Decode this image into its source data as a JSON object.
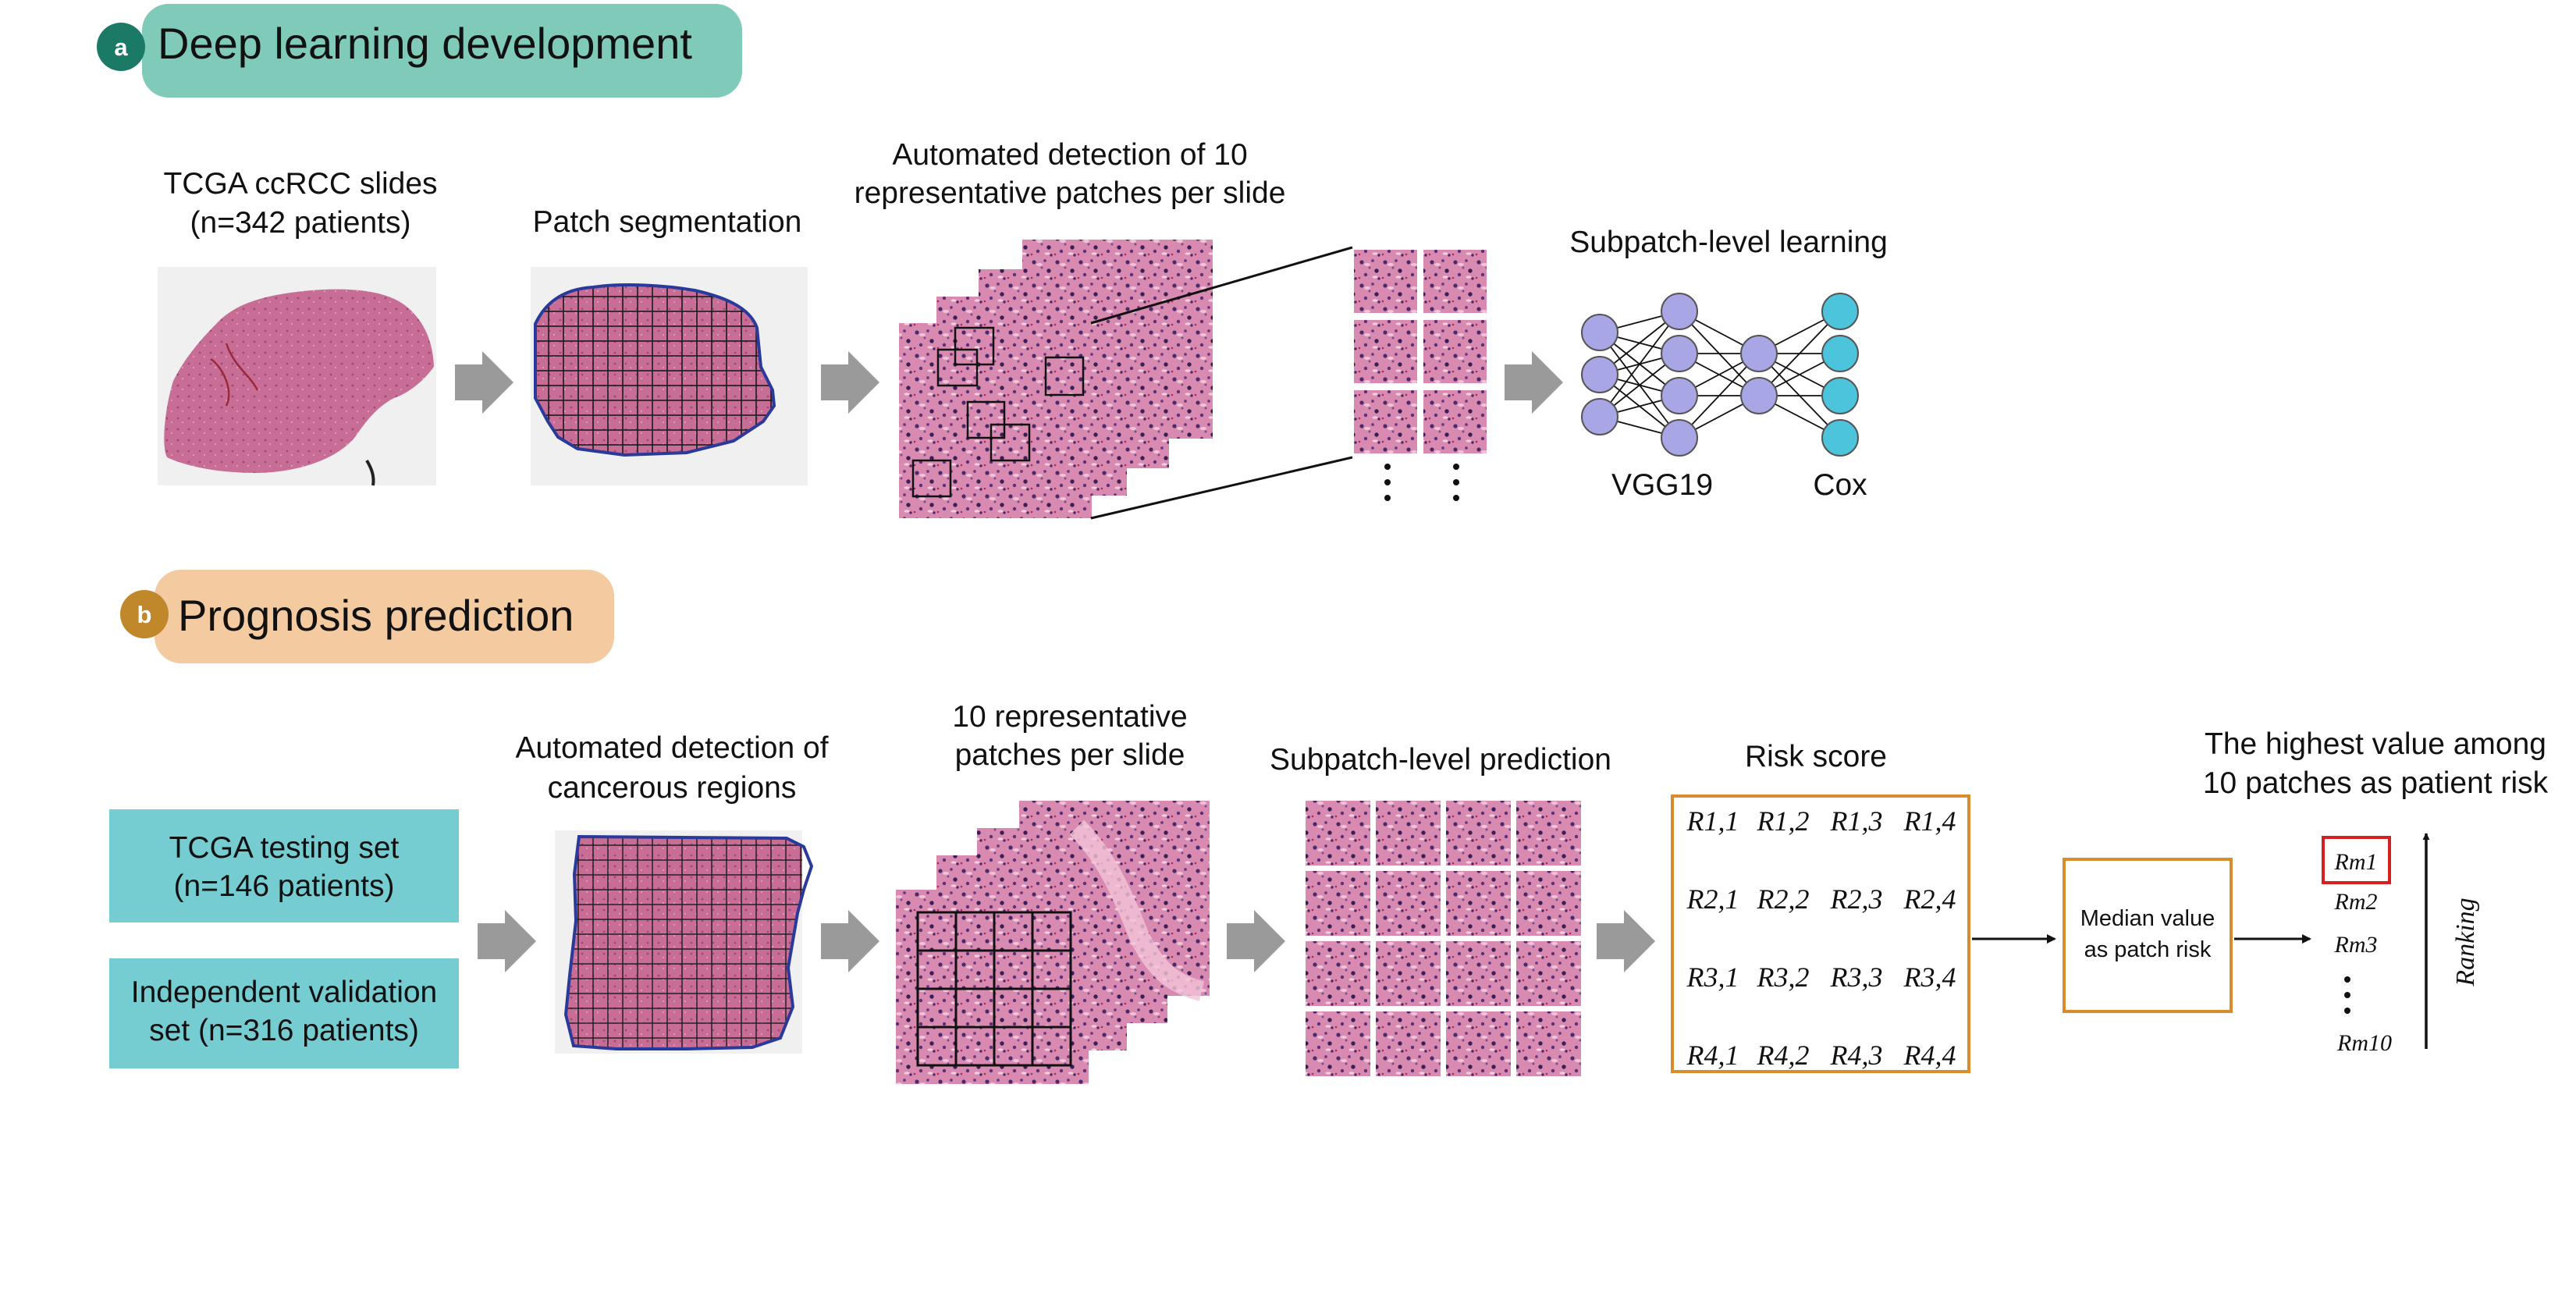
{
  "colors": {
    "panel_a_badge": "#1a7a66",
    "panel_a_banner": "#7fcab8",
    "panel_b_badge": "#c0882a",
    "panel_b_banner": "#f4caa0",
    "dataset_box": "#76cdd1",
    "arrow_gray": "#9a9a9a",
    "risk_box_border": "#d98c2b",
    "highlight_red": "#d42020",
    "nn_hidden": "#a8a6e4",
    "nn_output": "#4cc4dc",
    "tissue": "#c66a92"
  },
  "panel_a": {
    "badge": "a",
    "title": "Deep learning development",
    "slides_label": [
      "TCGA ccRCC slides",
      "(n=342 patients)"
    ],
    "segmentation_label": "Patch segmentation",
    "detection_label": [
      "Automated detection of 10",
      "representative patches per slide"
    ],
    "subpatch_label": "Subpatch-level learning",
    "vgg_label": "VGG19",
    "cox_label": "Cox",
    "icons": [
      "wsi-thumbnail-icon",
      "grid-overlay-icon",
      "patch-stack-icon",
      "neural-network-icon"
    ]
  },
  "panel_b": {
    "badge": "b",
    "title": "Prognosis prediction",
    "testing_set": [
      "TCGA testing set",
      "(n=146 patients)"
    ],
    "validation_set": [
      "Independent  validation",
      "set (n=316 patients)"
    ],
    "cancer_detection_label": [
      "Automated detection of",
      "cancerous regions"
    ],
    "patches_label": [
      "10 representative",
      "patches per slide"
    ],
    "prediction_label": "Subpatch-level prediction",
    "risk_title": "Risk score",
    "risk_matrix": [
      [
        "R1,1",
        "R1,2",
        "R1,3",
        "R1,4"
      ],
      [
        "R2,1",
        "R2,2",
        "R2,3",
        "R2,4"
      ],
      [
        "R3,1",
        "R3,2",
        "R3,3",
        "R3,4"
      ],
      [
        "R4,1",
        "R4,2",
        "R4,3",
        "R4,4"
      ]
    ],
    "median_box": [
      "Median value",
      "as patch risk"
    ],
    "highest_label": [
      "The highest value among",
      "10 patches as  patient risk"
    ],
    "ranking_items": [
      "Rm1",
      "Rm2",
      "Rm3",
      "Rm10"
    ],
    "ranking_label": "Ranking"
  }
}
